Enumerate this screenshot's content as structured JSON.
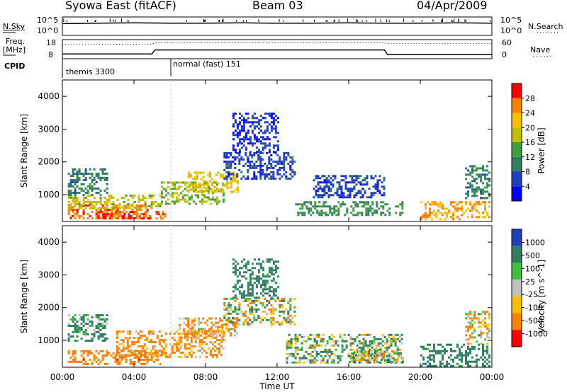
{
  "header": {
    "station": "Syowa East (fitACF)",
    "beam": "Beam 03",
    "date": "04/Apr/2009"
  },
  "strip_labels": {
    "nsky": "N.Sky",
    "nsky_ticks": [
      "10^5",
      "10^0"
    ],
    "nsearch": "N.Search",
    "nsearch_ticks": [
      "10^5",
      "10^0"
    ],
    "freq": "Freq.",
    "freq_unit": "[MHz]",
    "freq_ticks": [
      "18",
      "8"
    ],
    "nave": "Nave",
    "nave_ticks": [
      "60",
      "0"
    ],
    "cpid": "CPID",
    "modes": [
      "themis 3300",
      "normal (fast) 151"
    ]
  },
  "colors": {
    "power": [
      "#0000ff",
      "#1f3fbf",
      "#2e7f5f",
      "#3f9f3f",
      "#bfbf00",
      "#ffbf00",
      "#ff7f00",
      "#ff0000"
    ],
    "velocity": [
      "#1f3fbf",
      "#2e7f5f",
      "#3fbf3f",
      "#c0c0c0",
      "#ffbf00",
      "#ff7f00",
      "#ff0000"
    ],
    "text": "#000000"
  },
  "chart_data": [
    {
      "type": "line",
      "title": "N.Sky / N.Search",
      "x": [
        "00:00",
        "02:00",
        "04:00",
        "06:00",
        "08:00",
        "10:00",
        "12:00",
        "14:00",
        "16:00",
        "18:00",
        "20:00",
        "22:00",
        "24:00"
      ],
      "series": [
        {
          "values": [
            3.2,
            3.3,
            3.4,
            3.3,
            3.3,
            3.4,
            3.3,
            3.3,
            3.4,
            3.3,
            3.3,
            3.4,
            3.3
          ]
        }
      ],
      "ylim": [
        0,
        5
      ],
      "yscale": "log10"
    },
    {
      "type": "line",
      "title": "Freq / Nave",
      "x": [
        "00:00",
        "05:00",
        "05:10",
        "18:00",
        "18:10",
        "24:00"
      ],
      "series": [
        {
          "values": [
            10.5,
            10.5,
            12.6,
            12.6,
            10.2,
            10.2
          ]
        },
        {
          "values": [
            44,
            46,
            50,
            50,
            48,
            48
          ]
        }
      ],
      "ylim": [
        8,
        18
      ],
      "y2lim": [
        0,
        60
      ]
    },
    {
      "type": "heatmap",
      "ylabel": "Slant Range [km]",
      "xlabel": "Time UT",
      "xticks": [
        "00:00",
        "04:00",
        "08:00",
        "12:00",
        "16:00",
        "20:00",
        "00:00"
      ],
      "yticks": [
        "1000",
        "2000",
        "3000",
        "4000"
      ],
      "xlim": [
        0,
        24
      ],
      "ylim": [
        180,
        4500
      ],
      "colorbar": {
        "label": "Power [dB]",
        "ticks": [
          "4",
          "8",
          "12",
          "16",
          "20",
          "24",
          "28"
        ],
        "range": [
          0,
          32
        ]
      },
      "regions": [
        {
          "t0": 0.3,
          "t1": 5.0,
          "r0": 250,
          "r1": 700,
          "v": 26
        },
        {
          "t0": 0.3,
          "t1": 5.5,
          "r0": 600,
          "r1": 1000,
          "v": 18
        },
        {
          "t0": 2.0,
          "t1": 5.8,
          "r0": 300,
          "r1": 500,
          "v": 28
        },
        {
          "t0": 0.3,
          "t1": 2.5,
          "r0": 1000,
          "r1": 1800,
          "v": 10
        },
        {
          "t0": 5.5,
          "t1": 9.0,
          "r0": 700,
          "r1": 1400,
          "v": 16
        },
        {
          "t0": 7.0,
          "t1": 9.8,
          "r0": 1100,
          "r1": 1700,
          "v": 20
        },
        {
          "t0": 9.0,
          "t1": 13.0,
          "r0": 1500,
          "r1": 2300,
          "v": 6
        },
        {
          "t0": 9.5,
          "t1": 12.0,
          "r0": 2300,
          "r1": 3500,
          "v": 5
        },
        {
          "t0": 13.0,
          "t1": 19.0,
          "r0": 350,
          "r1": 800,
          "v": 12
        },
        {
          "t0": 14.0,
          "t1": 18.0,
          "r0": 900,
          "r1": 1600,
          "v": 6
        },
        {
          "t0": 20.0,
          "t1": 23.9,
          "r0": 250,
          "r1": 800,
          "v": 24
        },
        {
          "t0": 22.5,
          "t1": 23.9,
          "r0": 900,
          "r1": 1900,
          "v": 10
        }
      ]
    },
    {
      "type": "heatmap",
      "ylabel": "Slant Range [km]",
      "xlabel": "Time UT",
      "xticks": [
        "00:00",
        "04:00",
        "08:00",
        "12:00",
        "16:00",
        "20:00",
        "00:00"
      ],
      "yticks": [
        "1000",
        "2000",
        "3000",
        "4000"
      ],
      "xlim": [
        0,
        24
      ],
      "ylim": [
        180,
        4500
      ],
      "colorbar": {
        "label": "Velocity [m s^-1]",
        "ticks": [
          "1000",
          "500",
          "100",
          "25",
          "-25",
          "-100",
          "-500",
          "-1000"
        ],
        "range": [
          -1200,
          1200
        ]
      },
      "regions": [
        {
          "t0": 0.3,
          "t1": 5.5,
          "r0": 250,
          "r1": 700,
          "v": -300
        },
        {
          "t0": 3.0,
          "t1": 9.0,
          "r0": 500,
          "r1": 1300,
          "v": -200
        },
        {
          "t0": 6.5,
          "t1": 9.8,
          "r0": 1100,
          "r1": 1700,
          "v": -150
        },
        {
          "t0": 0.3,
          "t1": 2.5,
          "r0": 1000,
          "r1": 1800,
          "v": 200
        },
        {
          "t0": 9.0,
          "t1": 13.0,
          "r0": 1500,
          "r1": 2300,
          "v": 0
        },
        {
          "t0": 9.5,
          "t1": 12.0,
          "r0": 2300,
          "r1": 3500,
          "v": 300
        },
        {
          "t0": 12.5,
          "t1": 19.0,
          "r0": 350,
          "r1": 1200,
          "v": 80
        },
        {
          "t0": 16.0,
          "t1": 19.0,
          "r0": 350,
          "r1": 700,
          "v": 10
        },
        {
          "t0": 20.0,
          "t1": 23.9,
          "r0": 250,
          "r1": 900,
          "v": 300
        },
        {
          "t0": 22.5,
          "t1": 23.9,
          "r0": 900,
          "r1": 1900,
          "v": -80
        }
      ]
    }
  ]
}
